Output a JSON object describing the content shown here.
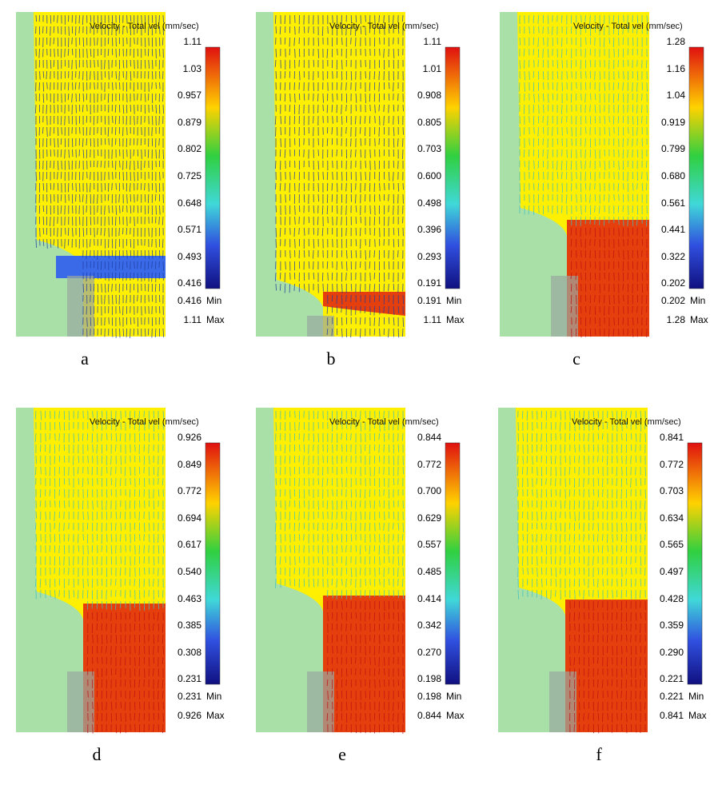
{
  "panels": [
    {
      "label": "a",
      "title": "Velocity - Total vel (mm/sec)",
      "ticks": [
        "1.11",
        "1.03",
        "0.957",
        "0.879",
        "0.802",
        "0.725",
        "0.648",
        "0.571",
        "0.493",
        "0.416"
      ],
      "min": "0.416",
      "max": "1.11",
      "min_label": "Min",
      "max_label": "Max"
    },
    {
      "label": "b",
      "title": "Velocity - Total vel (mm/sec)",
      "ticks": [
        "1.11",
        "1.01",
        "0.908",
        "0.805",
        "0.703",
        "0.600",
        "0.498",
        "0.396",
        "0.293",
        "0.191"
      ],
      "min": "0.191",
      "max": "1.11",
      "min_label": "Min",
      "max_label": "Max"
    },
    {
      "label": "c",
      "title": "Velocity - Total vel (mm/sec)",
      "ticks": [
        "1.28",
        "1.16",
        "1.04",
        "0.919",
        "0.799",
        "0.680",
        "0.561",
        "0.441",
        "0.322",
        "0.202"
      ],
      "min": "0.202",
      "max": "1.28",
      "min_label": "Min",
      "max_label": "Max"
    },
    {
      "label": "d",
      "title": "Velocity - Total vel (mm/sec)",
      "ticks": [
        "0.926",
        "0.849",
        "0.772",
        "0.694",
        "0.617",
        "0.540",
        "0.463",
        "0.385",
        "0.308",
        "0.231"
      ],
      "min": "0.231",
      "max": "0.926",
      "min_label": "Min",
      "max_label": "Max"
    },
    {
      "label": "e",
      "title": "Velocity - Total vel (mm/sec)",
      "ticks": [
        "0.844",
        "0.772",
        "0.700",
        "0.629",
        "0.557",
        "0.485",
        "0.414",
        "0.342",
        "0.270",
        "0.198"
      ],
      "min": "0.198",
      "max": "0.844",
      "min_label": "Min",
      "max_label": "Max"
    },
    {
      "label": "f",
      "title": "Velocity - Total vel (mm/sec)",
      "ticks": [
        "0.841",
        "0.772",
        "0.703",
        "0.634",
        "0.565",
        "0.497",
        "0.428",
        "0.359",
        "0.290",
        "0.221"
      ],
      "min": "0.221",
      "max": "0.841",
      "min_label": "Min",
      "max_label": "Max"
    }
  ],
  "colors": {
    "background": "#a8e0a8",
    "fluid_low_speed": "#ffef00",
    "fluid_high_speed": "#e02010",
    "arrow_slow": "#1e3da0",
    "arrow_mid": "#3fc0c0",
    "die_gray": "#9aa8a0"
  }
}
